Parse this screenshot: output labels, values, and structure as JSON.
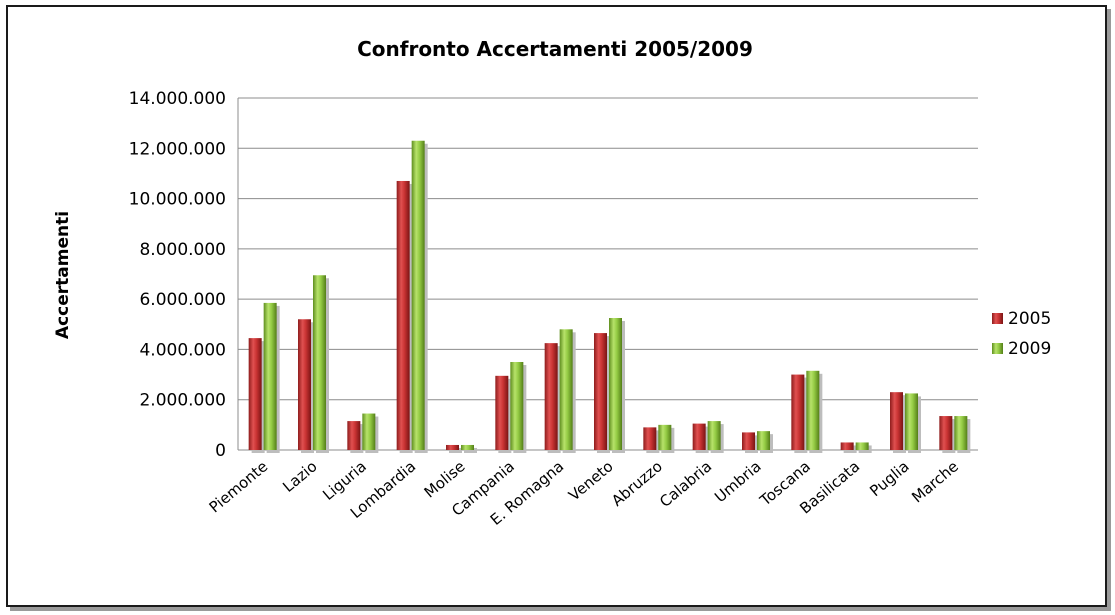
{
  "chart_data": {
    "type": "bar",
    "title": "Confronto Accertamenti 2005/2009",
    "xlabel": "",
    "ylabel": "Accertamenti",
    "ylim": [
      0,
      14000000
    ],
    "yticks": [
      0,
      2000000,
      4000000,
      6000000,
      8000000,
      10000000,
      12000000,
      14000000
    ],
    "ytick_labels": [
      "0",
      "2.000.000",
      "4.000.000",
      "6.000.000",
      "8.000.000",
      "10.000.000",
      "12.000.000",
      "14.000.000"
    ],
    "grid": true,
    "legend_position": "right",
    "categories": [
      "Piemonte",
      "Lazio",
      "Liguria",
      "Lombardia",
      "Molise",
      "Campania",
      "E. Romagna",
      "Veneto",
      "Abruzzo",
      "Calabria",
      "Umbria",
      "Toscana",
      "Basilicata",
      "Puglia",
      "Marche"
    ],
    "series": [
      {
        "name": "2005",
        "color": "#c0392b",
        "values": [
          4450000,
          5200000,
          1150000,
          10700000,
          200000,
          2950000,
          4250000,
          4650000,
          900000,
          1050000,
          700000,
          3000000,
          300000,
          2300000,
          1350000
        ]
      },
      {
        "name": "2009",
        "color": "#8cc63f",
        "values": [
          5850000,
          6950000,
          1450000,
          12300000,
          200000,
          3500000,
          4800000,
          5250000,
          1000000,
          1150000,
          750000,
          3150000,
          300000,
          2250000,
          1350000
        ]
      }
    ]
  }
}
